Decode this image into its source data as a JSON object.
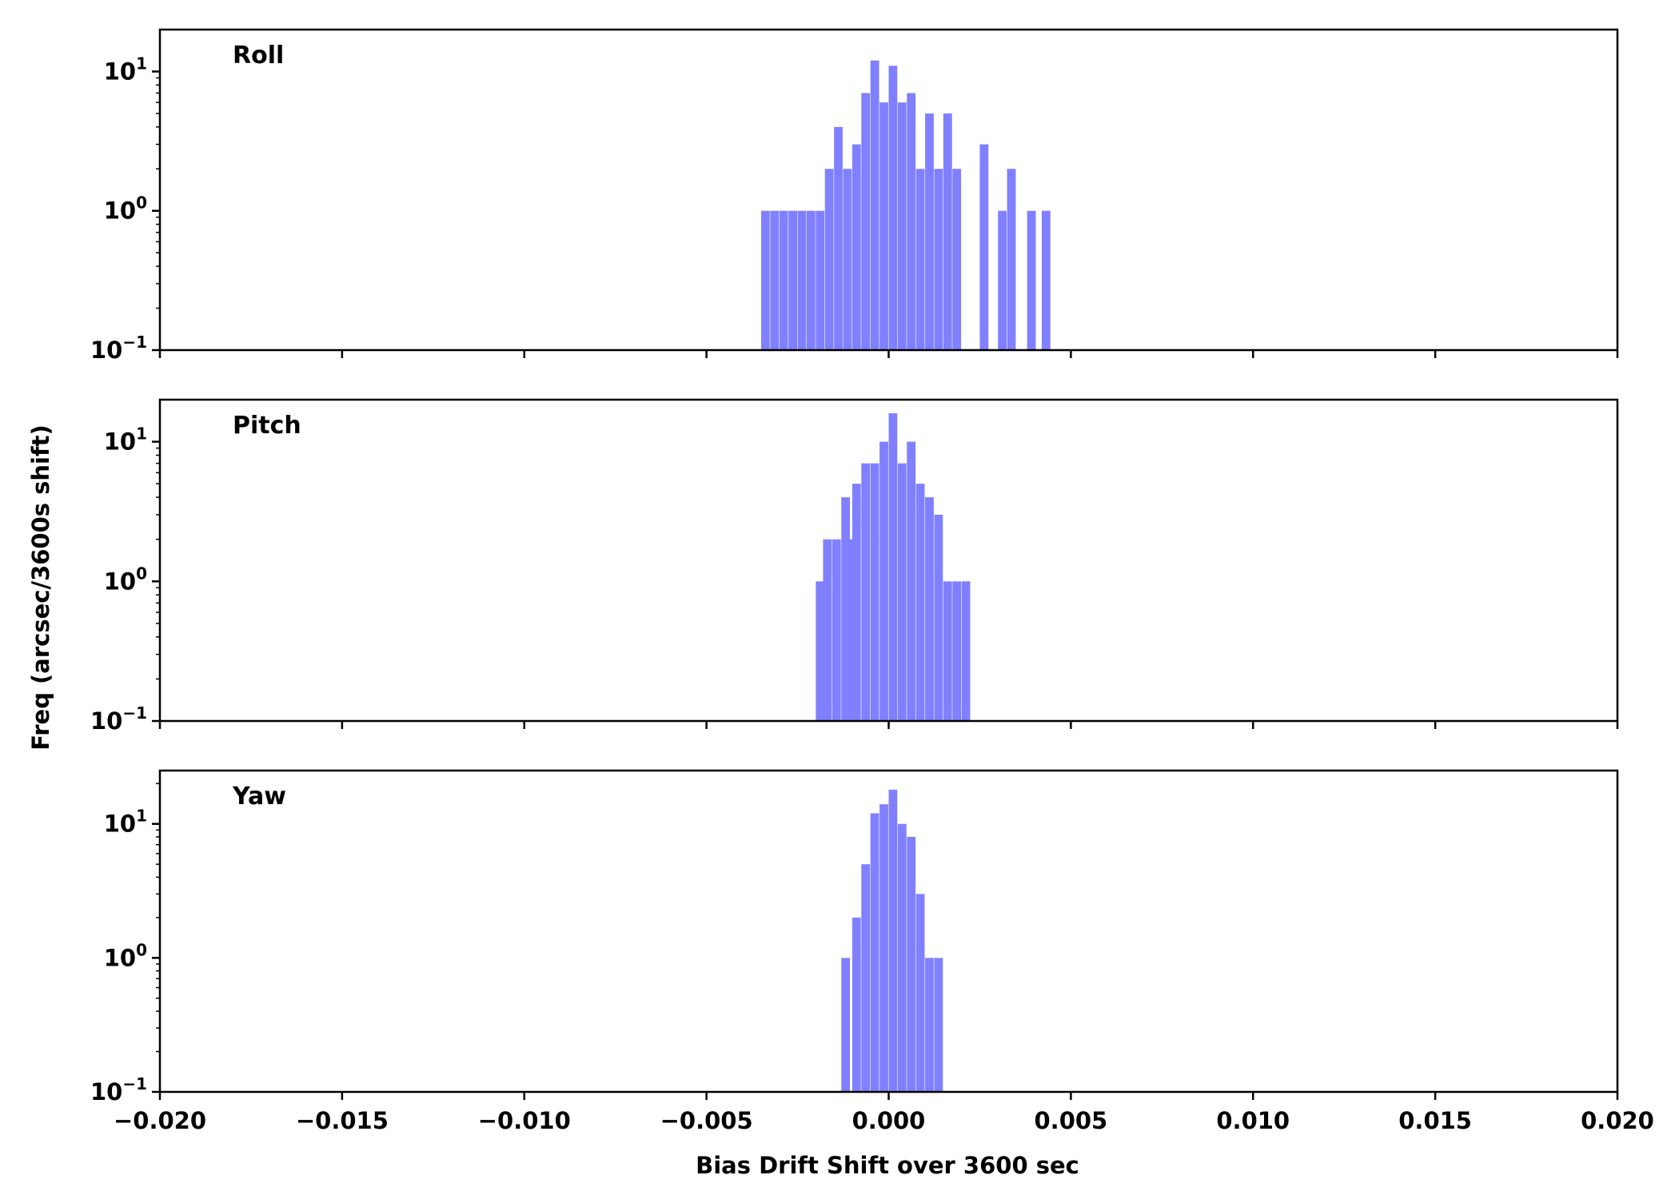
{
  "chart_data": {
    "type": "histogram",
    "xlabel": "Bias Drift Shift over 3600 sec",
    "ylabel": "Freq (arcsec/3600s shift)",
    "xlim": [
      -0.02,
      0.02
    ],
    "x_ticks": [
      -0.02,
      -0.015,
      -0.01,
      -0.005,
      0.0,
      0.005,
      0.01,
      0.015,
      0.02
    ],
    "x_tick_labels": [
      "−0.020",
      "−0.015",
      "−0.010",
      "−0.005",
      "0.000",
      "0.005",
      "0.010",
      "0.015",
      "0.020"
    ],
    "yscale": "log",
    "bar_color": "#8080ff",
    "bin_width": 0.00025,
    "panels": [
      {
        "title": "Roll",
        "ylim": [
          0.1,
          20
        ],
        "y_ticks": [
          {
            "v": 0.1,
            "exp": "−1"
          },
          {
            "v": 1,
            "exp": "0"
          },
          {
            "v": 10,
            "exp": "1"
          }
        ],
        "bins": [
          {
            "x": -0.0035,
            "y": 1
          },
          {
            "x": -0.00325,
            "y": 1
          },
          {
            "x": -0.003,
            "y": 1
          },
          {
            "x": -0.00275,
            "y": 1
          },
          {
            "x": -0.0025,
            "y": 1
          },
          {
            "x": -0.00225,
            "y": 1
          },
          {
            "x": -0.002,
            "y": 1
          },
          {
            "x": -0.00175,
            "y": 2
          },
          {
            "x": -0.0015,
            "y": 4
          },
          {
            "x": -0.00125,
            "y": 2
          },
          {
            "x": -0.001,
            "y": 3
          },
          {
            "x": -0.00075,
            "y": 7
          },
          {
            "x": -0.0005,
            "y": 12
          },
          {
            "x": -0.00025,
            "y": 6
          },
          {
            "x": 0.0,
            "y": 11
          },
          {
            "x": 0.00025,
            "y": 6
          },
          {
            "x": 0.0005,
            "y": 7
          },
          {
            "x": 0.00075,
            "y": 2
          },
          {
            "x": 0.001,
            "y": 5
          },
          {
            "x": 0.00125,
            "y": 2
          },
          {
            "x": 0.0015,
            "y": 5
          },
          {
            "x": 0.00175,
            "y": 2
          },
          {
            "x": 0.0025,
            "y": 3
          },
          {
            "x": 0.003,
            "y": 1
          },
          {
            "x": 0.00325,
            "y": 2
          },
          {
            "x": 0.0038,
            "y": 1
          },
          {
            "x": 0.0042,
            "y": 1
          }
        ]
      },
      {
        "title": "Pitch",
        "ylim": [
          0.1,
          20
        ],
        "y_ticks": [
          {
            "v": 0.1,
            "exp": "−1"
          },
          {
            "v": 1,
            "exp": "0"
          },
          {
            "v": 10,
            "exp": "1"
          }
        ],
        "bins": [
          {
            "x": -0.002,
            "y": 1
          },
          {
            "x": -0.0018,
            "y": 2
          },
          {
            "x": -0.00155,
            "y": 2
          },
          {
            "x": -0.0013,
            "y": 4
          },
          {
            "x": -0.0011,
            "y": 2
          },
          {
            "x": -0.001,
            "y": 5
          },
          {
            "x": -0.00075,
            "y": 7
          },
          {
            "x": -0.0005,
            "y": 7
          },
          {
            "x": -0.00025,
            "y": 10
          },
          {
            "x": 0.0,
            "y": 16
          },
          {
            "x": 0.00025,
            "y": 7
          },
          {
            "x": 0.0005,
            "y": 10
          },
          {
            "x": 0.00075,
            "y": 5
          },
          {
            "x": 0.001,
            "y": 4
          },
          {
            "x": 0.00125,
            "y": 3
          },
          {
            "x": 0.0015,
            "y": 1
          },
          {
            "x": 0.00175,
            "y": 1
          },
          {
            "x": 0.002,
            "y": 1
          }
        ]
      },
      {
        "title": "Yaw",
        "ylim": [
          0.1,
          25
        ],
        "y_ticks": [
          {
            "v": 0.1,
            "exp": "−1"
          },
          {
            "v": 1,
            "exp": "0"
          },
          {
            "v": 10,
            "exp": "1"
          }
        ],
        "bins": [
          {
            "x": -0.0013,
            "y": 1
          },
          {
            "x": -0.001,
            "y": 2
          },
          {
            "x": -0.00075,
            "y": 5
          },
          {
            "x": -0.0005,
            "y": 12
          },
          {
            "x": -0.00025,
            "y": 14
          },
          {
            "x": 0.0,
            "y": 18
          },
          {
            "x": 0.00025,
            "y": 10
          },
          {
            "x": 0.0005,
            "y": 8
          },
          {
            "x": 0.00075,
            "y": 3
          },
          {
            "x": 0.001,
            "y": 1
          },
          {
            "x": 0.00125,
            "y": 1
          }
        ]
      }
    ]
  }
}
